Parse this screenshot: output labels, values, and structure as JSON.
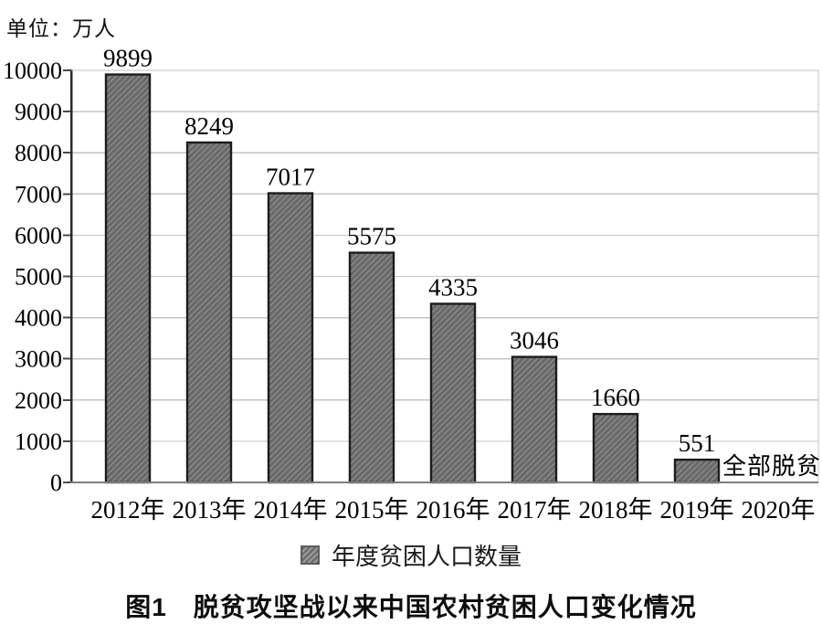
{
  "chart_data": {
    "type": "bar",
    "title": "图1　脱贫攻坚战以来中国农村贫困人口变化情况",
    "unit": "单位：万人",
    "categories": [
      "2012年",
      "2013年",
      "2014年",
      "2015年",
      "2016年",
      "2017年",
      "2018年",
      "2019年",
      "2020年"
    ],
    "values": [
      9899,
      8249,
      7017,
      5575,
      4335,
      3046,
      1660,
      551,
      null
    ],
    "annotations": [
      {
        "category": "2020年",
        "text": "全部脱贫"
      }
    ],
    "legend": [
      "年度贫困人口数量"
    ],
    "legend_position": "bottom",
    "xlabel": "",
    "ylabel": "",
    "ylim": [
      0,
      10000
    ],
    "ytick_step": 1000,
    "grid": true,
    "colors": {
      "bar_fill": "#696969",
      "bar_stripe": "#9e9e9e",
      "bar_border": "#1c1c1c",
      "gridline": "#c6c6c6",
      "axis_left": "#2b2b2b",
      "axis_bottom": "#7d7d7d",
      "tick": "#4a4a4a",
      "text": "#000000"
    }
  }
}
